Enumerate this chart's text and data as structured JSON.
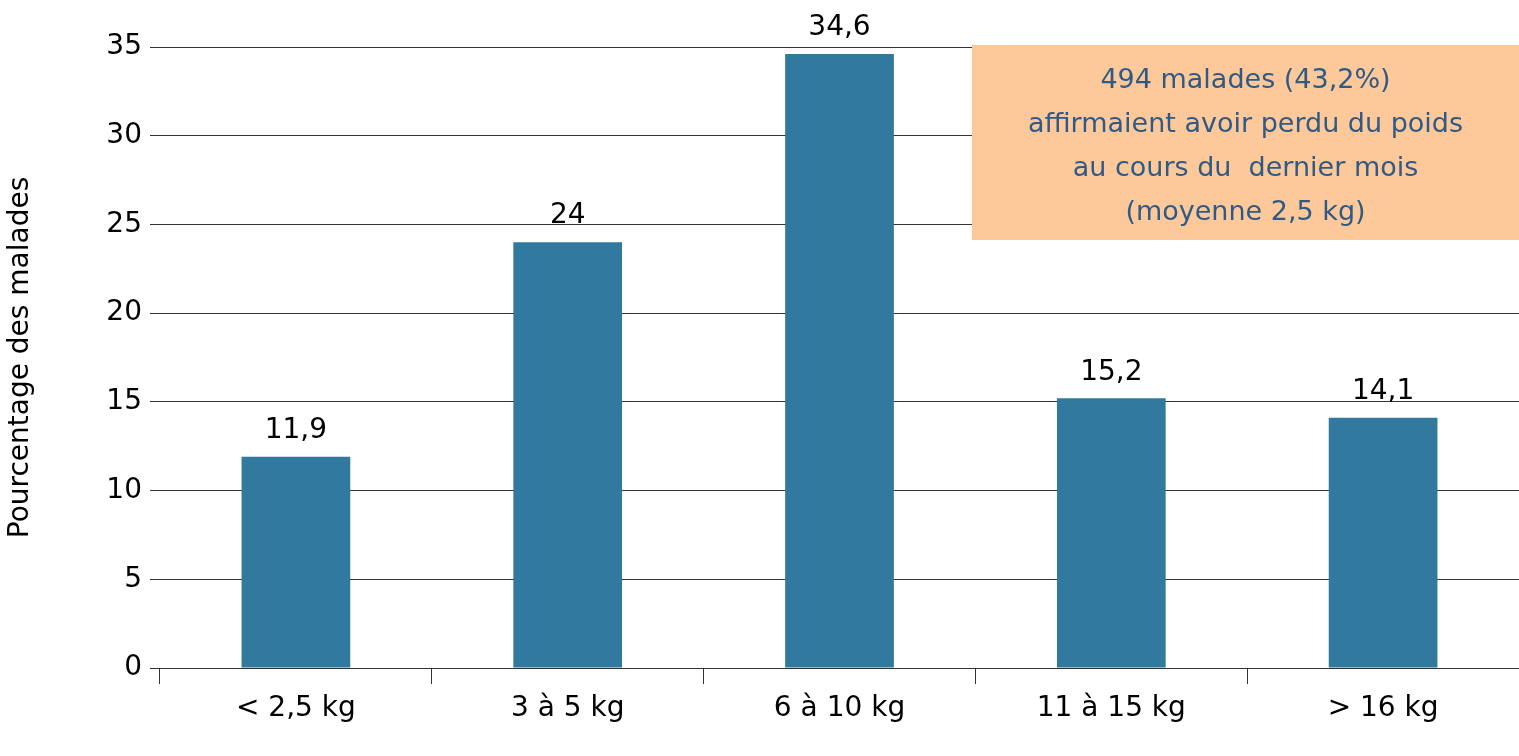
{
  "chart_data": {
    "type": "bar",
    "ylabel": "Pourcentage des malades",
    "categories": [
      "< 2,5 kg",
      "3 à 5 kg",
      "6 à 10 kg",
      "11 à 15 kg",
      "> 16 kg"
    ],
    "values": [
      11.9,
      24,
      34.6,
      15.2,
      14.1
    ],
    "value_labels": [
      "11,9",
      "24",
      "34,6",
      "15,2",
      "14,1"
    ],
    "color": "#31799e",
    "ylim": [
      0,
      35
    ],
    "yticks": [
      0,
      5,
      10,
      15,
      20,
      25,
      30,
      35
    ],
    "grid": "y",
    "legend": false,
    "annotations": [
      "494 malades (43,2%)\naffirmaient avoir perdu du poids\nau cours du  dernier mois\n(moyenne 2,5 kg)"
    ]
  }
}
